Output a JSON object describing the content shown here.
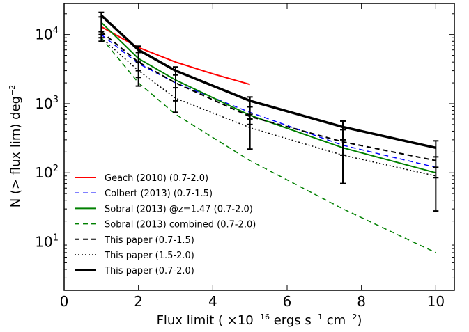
{
  "chart_data": {
    "type": "line",
    "xlabel": {
      "prefix": "Flux limit ( ×10",
      "exp": "−16",
      "mid": " ergs s",
      "exp2": "−1",
      "mid2": " cm",
      "exp3": "−2",
      "suffix": ")"
    },
    "ylabel": {
      "main": "N (> flux lim) deg",
      "exp": "−2"
    },
    "xlim": [
      0,
      10.5
    ],
    "ylim_log10": [
      0.3,
      4.45
    ],
    "y_scale": "log",
    "x_ticks": [
      0,
      2,
      4,
      6,
      8,
      10
    ],
    "x_tick_labels": [
      "0",
      "2",
      "4",
      "6",
      "8",
      "10"
    ],
    "y_ticks_log10": [
      1,
      2,
      3,
      4
    ],
    "y_tick_labels": [
      {
        "base": "10",
        "exp": "1"
      },
      {
        "base": "10",
        "exp": "2"
      },
      {
        "base": "10",
        "exp": "3"
      },
      {
        "base": "10",
        "exp": "4"
      }
    ],
    "legend_position": "lower-left",
    "series": [
      {
        "name": "Geach (2010) (0.7-2.0)",
        "color": "#ff0000",
        "style": "solid",
        "width": 2,
        "x": [
          1,
          2,
          3,
          4,
          5
        ],
        "y": [
          13000,
          6500,
          4000,
          2700,
          1900
        ],
        "errors": null
      },
      {
        "name": "Colbert (2013) (0.7-1.5)",
        "color": "#0000ff",
        "style": "dashed",
        "width": 1.5,
        "x": [
          1,
          2,
          3,
          5,
          7.5,
          10
        ],
        "y": [
          10000,
          3800,
          2000,
          750,
          250,
          120
        ],
        "errors": null
      },
      {
        "name": "Sobral (2013) @z=1.47 (0.7-2.0)",
        "color": "#008000",
        "style": "solid",
        "width": 2,
        "x": [
          1,
          2,
          3,
          5,
          7.5,
          10
        ],
        "y": [
          15000,
          4500,
          2200,
          680,
          230,
          100
        ],
        "errors": null
      },
      {
        "name": "Sobral (2013) combined (0.7-2.0)",
        "color": "#008000",
        "style": "dashed",
        "width": 1.5,
        "x": [
          1,
          2,
          3,
          5,
          7.5,
          10
        ],
        "y": [
          9000,
          2000,
          700,
          150,
          30,
          7
        ],
        "errors": null
      },
      {
        "name": "This paper (0.7-1.5)",
        "color": "#000000",
        "style": "dashed",
        "width": 2,
        "x": [
          1,
          2,
          3,
          5,
          7.5,
          10
        ],
        "y": [
          11000,
          4000,
          2000,
          650,
          280,
          150
        ],
        "errors": null
      },
      {
        "name": "This paper (1.5-2.0)",
        "color": "#000000",
        "style": "dotted",
        "width": 1.5,
        "x": [
          1,
          2,
          3,
          5,
          7.5,
          10
        ],
        "y": [
          9000,
          3000,
          1200,
          450,
          180,
          90
        ],
        "errors": null
      },
      {
        "name": "This paper (0.7-2.0)",
        "color": "#000000",
        "style": "solid",
        "width": 3.5,
        "x": [
          1,
          2,
          3,
          5,
          7.5,
          10
        ],
        "y": [
          19000,
          6000,
          3000,
          1100,
          460,
          230
        ],
        "errors": null
      }
    ],
    "error_bars": [
      {
        "x": 1,
        "low": 8000,
        "high": 21000,
        "caps": [
          8000,
          9000,
          10000,
          11000,
          18000,
          21000
        ]
      },
      {
        "x": 2,
        "low": 1800,
        "high": 6800,
        "caps": [
          1800,
          2400,
          3000,
          4000,
          5500,
          6800
        ]
      },
      {
        "x": 3,
        "low": 750,
        "high": 3400,
        "caps": [
          750,
          1100,
          1700,
          2600,
          3400
        ]
      },
      {
        "x": 5,
        "low": 220,
        "high": 1250,
        "caps": [
          220,
          500,
          600,
          700,
          900,
          1250
        ]
      },
      {
        "x": 7.5,
        "low": 70,
        "high": 560,
        "caps": [
          70,
          180,
          300,
          420,
          560
        ]
      },
      {
        "x": 10,
        "low": 28,
        "high": 290,
        "caps": [
          28,
          85,
          120,
          170,
          290
        ]
      }
    ]
  }
}
